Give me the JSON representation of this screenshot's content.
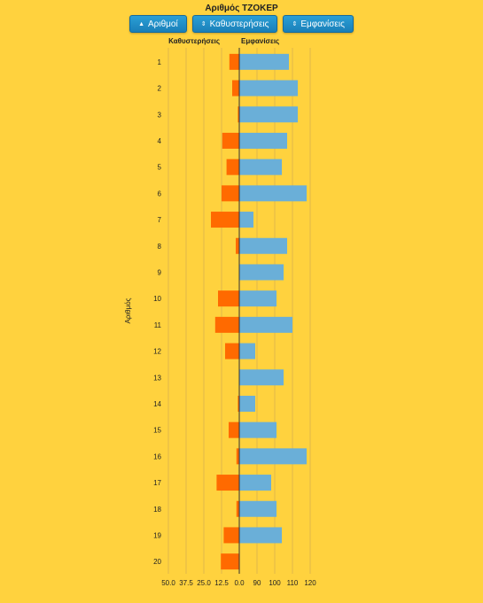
{
  "title": "Αριθμός ΤΖΟΚΕΡ",
  "buttons": [
    {
      "label": "Αριθμοί",
      "icon": "sort-asc-icon",
      "glyph": "▲"
    },
    {
      "label": "Καθυστερήσεις",
      "icon": "sort-both-icon",
      "glyph": "⇕"
    },
    {
      "label": "Εμφανίσεις",
      "icon": "sort-both-icon",
      "glyph": "⇕"
    }
  ],
  "colors": {
    "delays": "#FF6A00",
    "appearances": "#6AAFD8",
    "grid": "#E0B84A",
    "axis": "#333333"
  },
  "chart_data": {
    "type": "bar",
    "orientation": "horizontal-diverging",
    "ylabel": "Αριθμός",
    "categories": [
      "1",
      "2",
      "3",
      "4",
      "5",
      "6",
      "7",
      "8",
      "9",
      "10",
      "11",
      "12",
      "13",
      "14",
      "15",
      "16",
      "17",
      "18",
      "19",
      "20"
    ],
    "series": [
      {
        "name": "Καθυστερήσεις",
        "side": "left",
        "values": [
          7,
          5,
          1,
          12,
          9,
          12.5,
          20,
          2.5,
          0,
          15,
          17,
          10,
          0,
          1,
          7.5,
          2,
          16,
          2,
          11,
          13
        ]
      },
      {
        "name": "Εμφανίσεις",
        "side": "right",
        "values": [
          108,
          113,
          113,
          107,
          104,
          118,
          88,
          107,
          105,
          101,
          110,
          89,
          105,
          89,
          101,
          118,
          98,
          101,
          104,
          78
        ]
      }
    ],
    "left_axis": {
      "ticks": [
        "50.0",
        "37.5",
        "25.0",
        "12.5",
        "0.0"
      ],
      "range": [
        50,
        0
      ]
    },
    "right_axis": {
      "ticks": [
        "90",
        "100",
        "110",
        "120"
      ],
      "range": [
        80,
        120
      ]
    }
  }
}
